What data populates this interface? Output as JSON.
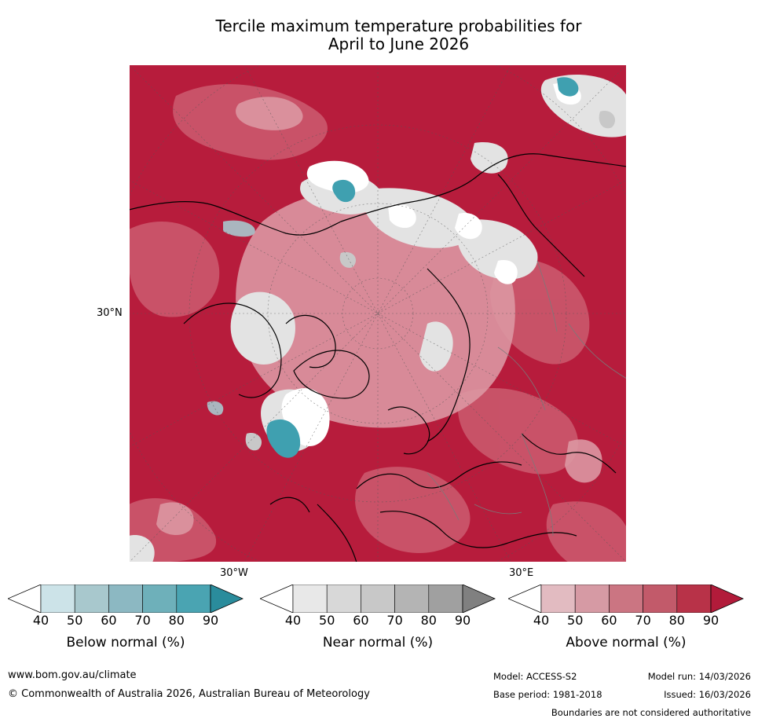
{
  "title": {
    "line1": "Tercile maximum temperature probabilities for",
    "line2": "April to June 2026"
  },
  "axis_labels": {
    "lat_30n": "30°N",
    "lon_30w": "30°W",
    "lon_30e": "30°E"
  },
  "colorbars": [
    {
      "label": "Below normal (%)",
      "ticks": [
        "40",
        "50",
        "60",
        "70",
        "80",
        "90"
      ],
      "colors": [
        "#cce3e8",
        "#a8c8cd",
        "#8cb8c2",
        "#6eb0ba",
        "#4aa4b2",
        "#2a8c9c"
      ]
    },
    {
      "label": "Near normal (%)",
      "ticks": [
        "40",
        "50",
        "60",
        "70",
        "80",
        "90"
      ],
      "colors": [
        "#e8e8e8",
        "#d8d8d8",
        "#c8c8c8",
        "#b4b4b4",
        "#a0a0a0",
        "#808080"
      ]
    },
    {
      "label": "Above normal (%)",
      "ticks": [
        "40",
        "50",
        "60",
        "70",
        "80",
        "90"
      ],
      "colors": [
        "#e2bbc1",
        "#d69aa4",
        "#cb7582",
        "#c25a6a",
        "#b83248",
        "#b21b3a"
      ]
    }
  ],
  "map_colors": {
    "dominant": "#b71c3c",
    "above_mid": "#c9556a",
    "above_low": "#dc97a2",
    "near": "#e3e3e3",
    "near_dark": "#c8c8c8",
    "below": "#3fa0b0",
    "white": "#ffffff"
  },
  "footer": {
    "url": "www.bom.gov.au/climate",
    "copyright": "© Commonwealth of Australia 2026, Australian Bureau of Meteorology",
    "model": "Model: ACCESS-S2",
    "base_period": "Base period: 1981-2018",
    "model_run": "Model run: 14/03/2026",
    "issued": "Issued: 16/03/2026",
    "disclaimer": "Boundaries are not considered authoritative"
  }
}
